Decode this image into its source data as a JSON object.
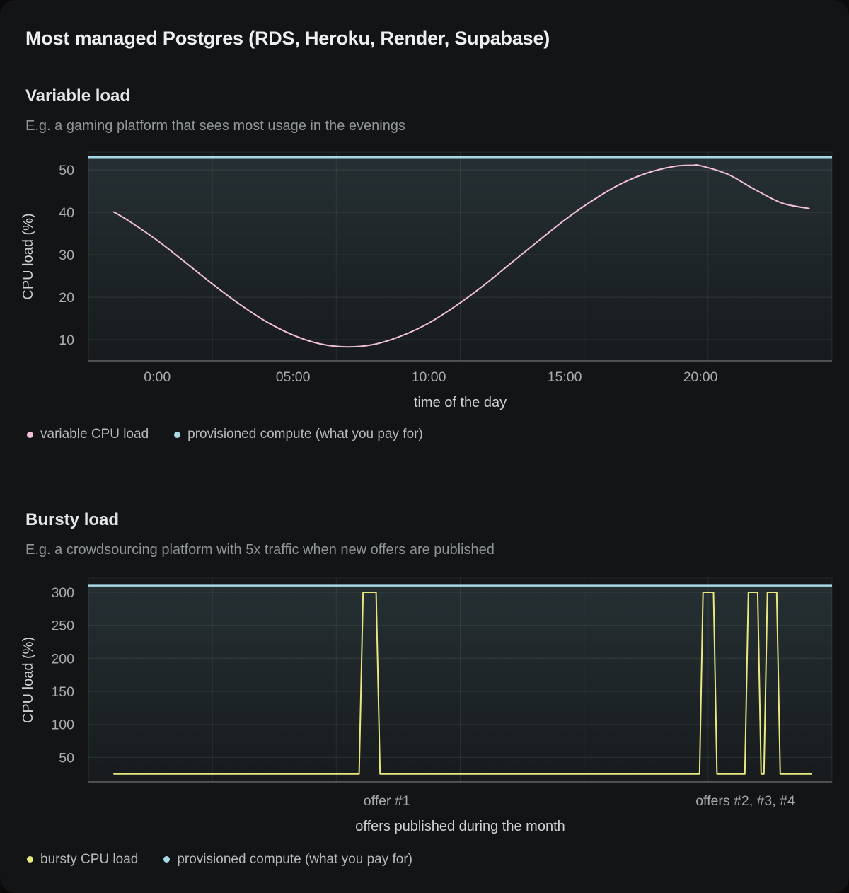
{
  "title": "Most managed Postgres (RDS, Heroku, Render, Supabase)",
  "colors": {
    "pink": "#f2bfd8",
    "blue": "#a9d8e7",
    "yellow": "#e8e87f",
    "plot_bg": "#15181a",
    "area_tint": "#94cdd8"
  },
  "sections": [
    {
      "heading": "Variable load",
      "subtitle": "E.g. a gaming platform that sees most usage in the evenings",
      "legend": [
        {
          "label": "variable CPU load",
          "color": "pink"
        },
        {
          "label": "provisioned compute (what you pay for)",
          "color": "blue"
        }
      ]
    },
    {
      "heading": "Bursty load",
      "subtitle": "E.g. a crowdsourcing platform with 5x traffic when new offers are published",
      "legend": [
        {
          "label": "bursty CPU load",
          "color": "yellow"
        },
        {
          "label": "provisioned compute (what you pay for)",
          "color": "blue"
        }
      ]
    }
  ],
  "chart_data": [
    {
      "type": "line",
      "title": "Variable load",
      "xlabel": "time of the day",
      "ylabel": "CPU load (%)",
      "x_domain": [
        -2.53,
        24.84
      ],
      "y_domain": [
        5,
        54.2
      ],
      "y_ticks": [
        10,
        20,
        30,
        40,
        50
      ],
      "x_ticks": [
        {
          "v": 0,
          "label": "0:00"
        },
        {
          "v": 5,
          "label": "05:00"
        },
        {
          "v": 10,
          "label": "10:00"
        },
        {
          "v": 15,
          "label": "15:00"
        },
        {
          "v": 20,
          "label": "20:00"
        }
      ],
      "v_grid_divisions": 6,
      "series": [
        {
          "name": "variable CPU load",
          "color": "pink",
          "smooth": true,
          "points": [
            [
              -1.6,
              40.1
            ],
            [
              -1,
              37.8
            ],
            [
              0,
              33.4
            ],
            [
              1,
              28.4
            ],
            [
              2,
              23.3
            ],
            [
              3,
              18.5
            ],
            [
              4,
              14.3
            ],
            [
              5,
              11.1
            ],
            [
              6,
              9.0
            ],
            [
              7,
              8.3
            ],
            [
              8,
              8.9
            ],
            [
              9,
              10.9
            ],
            [
              10,
              13.9
            ],
            [
              11,
              18.0
            ],
            [
              12,
              22.7
            ],
            [
              13,
              27.9
            ],
            [
              14,
              33.1
            ],
            [
              15,
              38.2
            ],
            [
              16,
              42.7
            ],
            [
              17,
              46.5
            ],
            [
              18,
              49.2
            ],
            [
              19,
              50.8
            ],
            [
              19.7,
              51.1
            ],
            [
              20,
              51.0
            ],
            [
              21,
              49.0
            ],
            [
              22,
              45.4
            ],
            [
              23,
              42.2
            ],
            [
              24,
              40.9
            ]
          ]
        },
        {
          "name": "provisioned compute (what you pay for)",
          "color": "blue",
          "constant": 53,
          "area_fill": true
        }
      ]
    },
    {
      "type": "line",
      "title": "Bursty load",
      "xlabel": "offers published during the month",
      "ylabel": "CPU load (%)",
      "x_domain": [
        -0.1,
        31.9
      ],
      "y_domain": [
        12.9,
        321.4
      ],
      "y_ticks": [
        50,
        100,
        150,
        200,
        250,
        300
      ],
      "x_ticks": [
        {
          "v": 12.74,
          "label": "offer #1"
        },
        {
          "v": 28.17,
          "label": "offers #2, #3, #4"
        }
      ],
      "v_grid_divisions": 6,
      "series": [
        {
          "name": "bursty CPU load",
          "color": "yellow",
          "smooth": false,
          "points": [
            [
              1,
              25
            ],
            [
              11.55,
              25
            ],
            [
              11.72,
              300
            ],
            [
              12.28,
              300
            ],
            [
              12.45,
              25
            ],
            [
              26.2,
              25
            ],
            [
              26.35,
              300
            ],
            [
              26.8,
              300
            ],
            [
              26.95,
              25
            ],
            [
              28.15,
              25
            ],
            [
              28.3,
              300
            ],
            [
              28.7,
              300
            ],
            [
              28.85,
              25
            ],
            [
              28.97,
              25
            ],
            [
              29.12,
              300
            ],
            [
              29.52,
              300
            ],
            [
              29.67,
              25
            ],
            [
              31,
              25
            ]
          ]
        },
        {
          "name": "provisioned compute (what you pay for)",
          "color": "blue",
          "constant": 310,
          "area_fill": true
        }
      ]
    }
  ]
}
